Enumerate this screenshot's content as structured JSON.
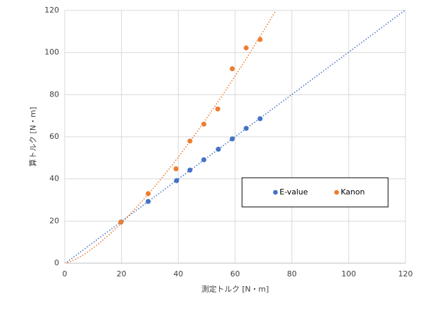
{
  "chart_data": {
    "type": "scatter",
    "x_label": "測定トルク [N・m]",
    "y_label": "算トルク [N・m]",
    "xlim": [
      0,
      120
    ],
    "xticks": [
      0,
      20,
      40,
      60,
      80,
      100,
      120
    ],
    "ylim": [
      0,
      120
    ],
    "yticks": [
      0,
      20,
      40,
      60,
      80,
      100,
      120
    ],
    "grid": true,
    "legend": "right",
    "series": [
      {
        "name": "E-value",
        "color": "#4472c4",
        "trendline": "linear",
        "x": [
          19.8,
          29.4,
          39.4,
          44.1,
          49.0,
          54.1,
          59.0,
          63.9,
          68.8
        ],
        "values": [
          19.5,
          29.3,
          39.2,
          44.2,
          49.1,
          54.1,
          59.0,
          64.0,
          68.6
        ]
      },
      {
        "name": "Kanon",
        "color": "#ed7d31",
        "trendline": "power",
        "x": [
          19.8,
          29.4,
          39.2,
          44.1,
          49.0,
          53.9,
          59.0,
          63.9,
          68.8
        ],
        "values": [
          19.5,
          33.0,
          44.8,
          58.0,
          66.0,
          73.2,
          92.3,
          102.2,
          106.2
        ]
      }
    ]
  }
}
